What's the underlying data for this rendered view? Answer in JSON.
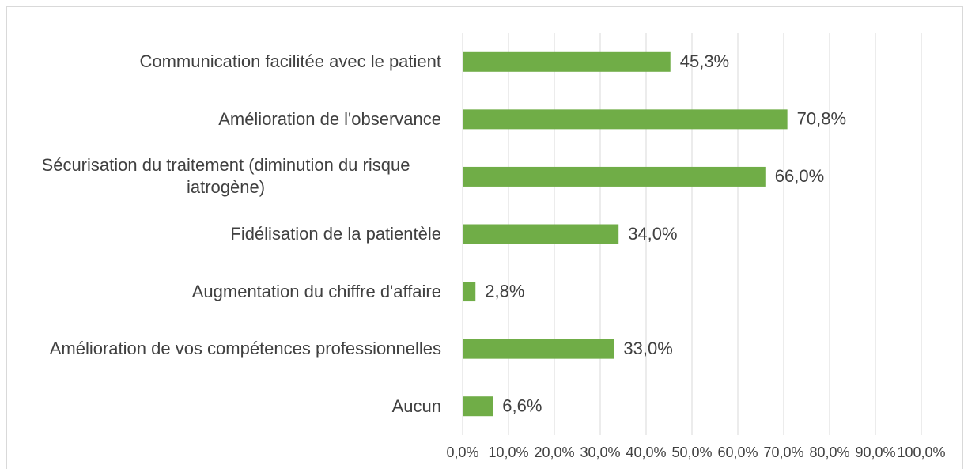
{
  "chart_data": {
    "type": "bar",
    "orientation": "horizontal",
    "categories": [
      "Communication facilitée avec le patient",
      "Amélioration de l'observance",
      "Sécurisation du traitement (diminution du risque iatrogène)",
      "Fidélisation de la patientèle",
      "Augmentation du chiffre d'affaire",
      "Amélioration de vos compétences professionnelles",
      "Aucun"
    ],
    "values": [
      45.3,
      70.8,
      66.0,
      34.0,
      2.8,
      33.0,
      6.6
    ],
    "value_labels": [
      "45,3%",
      "70,8%",
      "66,0%",
      "34,0%",
      "2,8%",
      "33,0%",
      "6,6%"
    ],
    "color": "#70ad47",
    "xlim": [
      0,
      100
    ],
    "xticks": [
      {
        "value": 0,
        "label": "0,0%"
      },
      {
        "value": 10,
        "label": "10,0%"
      },
      {
        "value": 20,
        "label": "20,0%"
      },
      {
        "value": 30,
        "label": "30,0%"
      },
      {
        "value": 40,
        "label": "40,0%"
      },
      {
        "value": 50,
        "label": "50,0%"
      },
      {
        "value": 60,
        "label": "60,0%"
      },
      {
        "value": 70,
        "label": "70,0%"
      },
      {
        "value": 80,
        "label": "80,0%"
      },
      {
        "value": 90,
        "label": "90,0%"
      },
      {
        "value": 100,
        "label": "100,0%"
      }
    ],
    "grid": true
  }
}
